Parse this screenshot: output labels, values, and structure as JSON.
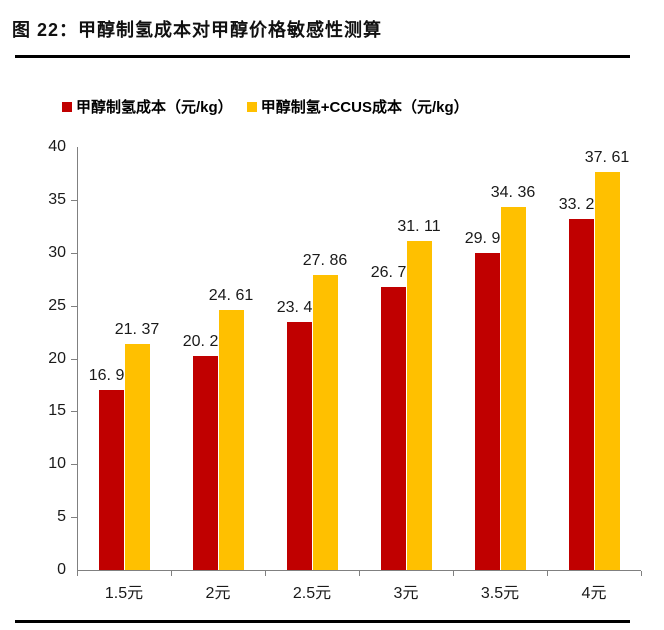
{
  "title": "图 22：甲醇制氢成本对甲醇价格敏感性测算",
  "colors": {
    "series_red": "#C00000",
    "series_yellow": "#FFC000",
    "axis": "#808080",
    "text": "#1a1a1a",
    "rule": "#000000"
  },
  "legend": [
    {
      "label": "甲醇制氢成本（元/kg）",
      "color": "#C00000"
    },
    {
      "label": "甲醇制氢+CCUS成本（元/kg）",
      "color": "#FFC000"
    }
  ],
  "chart_data": {
    "type": "bar",
    "title": "甲醇制氢成本对甲醇价格敏感性测算",
    "categories": [
      "1.5元",
      "2元",
      "2.5元",
      "3元",
      "3.5元",
      "4元"
    ],
    "series": [
      {
        "name": "甲醇制氢成本（元/kg）",
        "color": "#C00000",
        "values": [
          16.99,
          20.23,
          23.48,
          26.73,
          29.98,
          33.23
        ]
      },
      {
        "name": "甲醇制氢+CCUS成本（元/kg）",
        "color": "#FFC000",
        "values": [
          21.37,
          24.61,
          27.86,
          31.11,
          34.36,
          37.61
        ]
      }
    ],
    "xlabel": "",
    "ylabel": "",
    "ylim": [
      0,
      40
    ],
    "ytick_step": 5,
    "grid": false,
    "legend_position": "top",
    "data_labels": true,
    "data_label_format": "two-decimals-with-space-after-point"
  }
}
